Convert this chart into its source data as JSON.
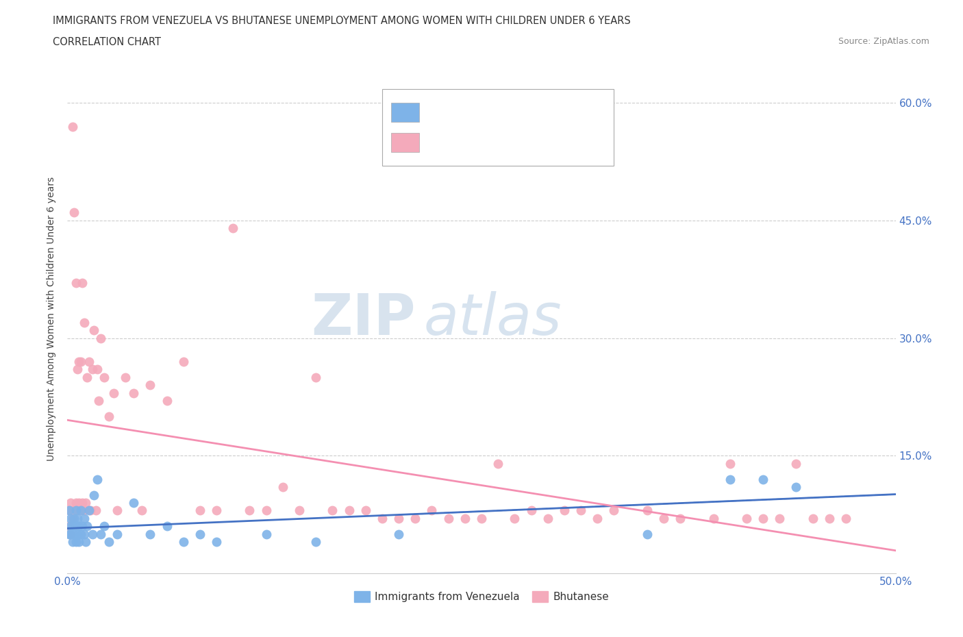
{
  "title_line1": "IMMIGRANTS FROM VENEZUELA VS BHUTANESE UNEMPLOYMENT AMONG WOMEN WITH CHILDREN UNDER 6 YEARS",
  "title_line2": "CORRELATION CHART",
  "source_text": "Source: ZipAtlas.com",
  "ylabel": "Unemployment Among Women with Children Under 6 years",
  "xlim": [
    0.0,
    0.5
  ],
  "ylim": [
    0.0,
    0.65
  ],
  "ytick_values": [
    0.15,
    0.3,
    0.45,
    0.6
  ],
  "ytick_labels": [
    "15.0%",
    "30.0%",
    "45.0%",
    "60.0%"
  ],
  "xtick_values": [
    0.0,
    0.5
  ],
  "xtick_labels": [
    "0.0%",
    "50.0%"
  ],
  "legend_label1": "Immigrants from Venezuela",
  "legend_label2": "Bhutanese",
  "color_venezuela": "#7EB3E8",
  "color_bhutanese": "#F4AABB",
  "color_text_blue": "#4472C4",
  "color_line_venezuela": "#4472C4",
  "color_line_bhutanese": "#F48FB1",
  "watermark_zip": "ZIP",
  "watermark_atlas": "atlas",
  "venezuela_x": [
    0.001,
    0.001,
    0.002,
    0.002,
    0.002,
    0.003,
    0.003,
    0.004,
    0.004,
    0.005,
    0.005,
    0.005,
    0.006,
    0.006,
    0.007,
    0.007,
    0.008,
    0.008,
    0.009,
    0.01,
    0.01,
    0.011,
    0.012,
    0.013,
    0.015,
    0.016,
    0.018,
    0.02,
    0.022,
    0.025,
    0.03,
    0.04,
    0.05,
    0.06,
    0.07,
    0.08,
    0.09,
    0.12,
    0.15,
    0.2,
    0.35,
    0.4,
    0.42,
    0.44
  ],
  "venezuela_y": [
    0.05,
    0.08,
    0.05,
    0.06,
    0.07,
    0.04,
    0.06,
    0.05,
    0.07,
    0.04,
    0.06,
    0.08,
    0.05,
    0.07,
    0.04,
    0.06,
    0.05,
    0.08,
    0.06,
    0.05,
    0.07,
    0.04,
    0.06,
    0.08,
    0.05,
    0.1,
    0.12,
    0.05,
    0.06,
    0.04,
    0.05,
    0.09,
    0.05,
    0.06,
    0.04,
    0.05,
    0.04,
    0.05,
    0.04,
    0.05,
    0.05,
    0.12,
    0.12,
    0.11
  ],
  "bhutanese_x": [
    0.001,
    0.001,
    0.002,
    0.002,
    0.003,
    0.003,
    0.004,
    0.004,
    0.005,
    0.005,
    0.006,
    0.006,
    0.007,
    0.007,
    0.008,
    0.008,
    0.009,
    0.009,
    0.01,
    0.01,
    0.011,
    0.012,
    0.013,
    0.014,
    0.015,
    0.016,
    0.017,
    0.018,
    0.019,
    0.02,
    0.022,
    0.025,
    0.028,
    0.03,
    0.035,
    0.04,
    0.045,
    0.05,
    0.06,
    0.07,
    0.08,
    0.09,
    0.1,
    0.11,
    0.12,
    0.13,
    0.14,
    0.15,
    0.16,
    0.17,
    0.18,
    0.19,
    0.2,
    0.21,
    0.22,
    0.23,
    0.24,
    0.25,
    0.26,
    0.27,
    0.28,
    0.29,
    0.3,
    0.31,
    0.32,
    0.33,
    0.35,
    0.36,
    0.37,
    0.39,
    0.4,
    0.41,
    0.42,
    0.43,
    0.44,
    0.45,
    0.46,
    0.47
  ],
  "bhutanese_y": [
    0.06,
    0.08,
    0.05,
    0.09,
    0.57,
    0.07,
    0.46,
    0.08,
    0.37,
    0.09,
    0.08,
    0.26,
    0.09,
    0.27,
    0.08,
    0.27,
    0.09,
    0.37,
    0.08,
    0.32,
    0.09,
    0.25,
    0.27,
    0.08,
    0.26,
    0.31,
    0.08,
    0.26,
    0.22,
    0.3,
    0.25,
    0.2,
    0.23,
    0.08,
    0.25,
    0.23,
    0.08,
    0.24,
    0.22,
    0.27,
    0.08,
    0.08,
    0.44,
    0.08,
    0.08,
    0.11,
    0.08,
    0.25,
    0.08,
    0.08,
    0.08,
    0.07,
    0.07,
    0.07,
    0.08,
    0.07,
    0.07,
    0.07,
    0.14,
    0.07,
    0.08,
    0.07,
    0.08,
    0.08,
    0.07,
    0.08,
    0.08,
    0.07,
    0.07,
    0.07,
    0.14,
    0.07,
    0.07,
    0.07,
    0.14,
    0.07,
    0.07,
    0.07
  ]
}
